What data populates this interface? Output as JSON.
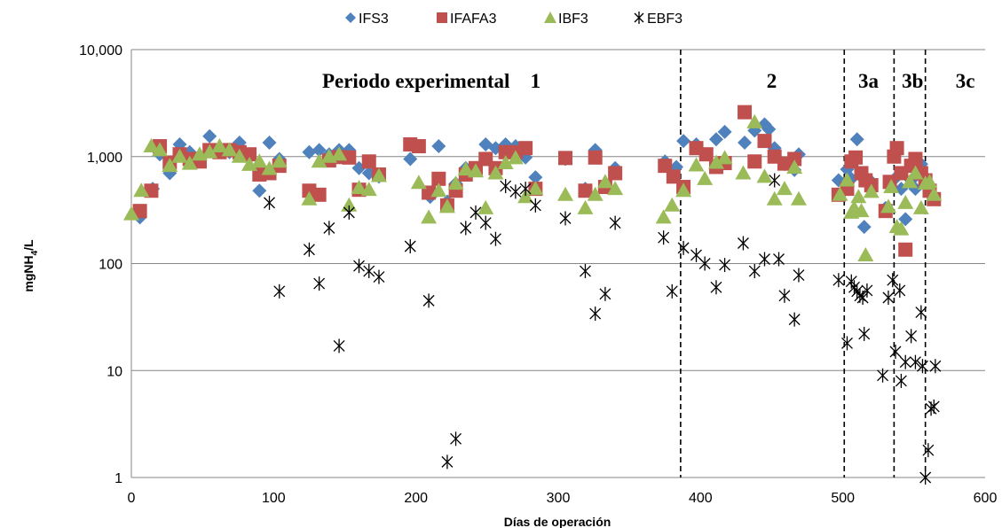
{
  "chart_data": {
    "type": "scatter",
    "title": "",
    "xlabel": "Días de operación",
    "ylabel": "mgNH4/L",
    "ylabel_main": "mgNH",
    "ylabel_sub": "4",
    "ylabel_tail": "/L",
    "y_scale": "log",
    "xlim": [
      0,
      600
    ],
    "ylim": [
      1,
      10000
    ],
    "x_ticks": [
      "0",
      "100",
      "200",
      "300",
      "400",
      "500",
      "600"
    ],
    "y_ticks": [
      "1",
      "10",
      "100",
      "1,000",
      "10,000"
    ],
    "grid": "horizontal",
    "legend_position": "top",
    "period_labels": [
      {
        "text": "Periodo experimental",
        "x": 200
      },
      {
        "text": "1",
        "x": 284
      },
      {
        "text": "2",
        "x": 450
      },
      {
        "text": "3a",
        "x": 518
      },
      {
        "text": "3b",
        "x": 549
      },
      {
        "text": "3c",
        "x": 586
      }
    ],
    "period_boundaries": [
      386,
      501,
      536,
      558
    ],
    "series": [
      {
        "name": "IFS3",
        "marker": "diamond",
        "color": "#4F81BD",
        "points": [
          [
            6,
            270
          ],
          [
            15,
            500
          ],
          [
            20,
            1050
          ],
          [
            27,
            700
          ],
          [
            34,
            1300
          ],
          [
            41,
            1100
          ],
          [
            48,
            950
          ],
          [
            55,
            1550
          ],
          [
            62,
            1200
          ],
          [
            69,
            1100
          ],
          [
            76,
            1350
          ],
          [
            83,
            1050
          ],
          [
            90,
            480
          ],
          [
            97,
            1350
          ],
          [
            104,
            950
          ],
          [
            125,
            1100
          ],
          [
            132,
            1150
          ],
          [
            139,
            1050
          ],
          [
            146,
            1150
          ],
          [
            153,
            1150
          ],
          [
            160,
            780
          ],
          [
            167,
            700
          ],
          [
            174,
            650
          ],
          [
            196,
            950
          ],
          [
            210,
            420
          ],
          [
            216,
            1250
          ],
          [
            222,
            380
          ],
          [
            228,
            560
          ],
          [
            235,
            780
          ],
          [
            242,
            750
          ],
          [
            249,
            1300
          ],
          [
            256,
            1200
          ],
          [
            263,
            1300
          ],
          [
            270,
            1250
          ],
          [
            277,
            980
          ],
          [
            284,
            640
          ],
          [
            305,
            950
          ],
          [
            319,
            500
          ],
          [
            326,
            1150
          ],
          [
            333,
            520
          ],
          [
            340,
            780
          ],
          [
            375,
            900
          ],
          [
            383,
            800
          ],
          [
            388,
            1400
          ],
          [
            397,
            1300
          ],
          [
            404,
            1050
          ],
          [
            411,
            1450
          ],
          [
            417,
            1700
          ],
          [
            431,
            1350
          ],
          [
            438,
            1750
          ],
          [
            445,
            2000
          ],
          [
            448,
            1800
          ],
          [
            452,
            1200
          ],
          [
            459,
            850
          ],
          [
            466,
            750
          ],
          [
            469,
            1050
          ],
          [
            497,
            600
          ],
          [
            503,
            760
          ],
          [
            506,
            620
          ],
          [
            510,
            1450
          ],
          [
            513,
            650
          ],
          [
            515,
            220
          ],
          [
            519,
            600
          ],
          [
            530,
            330
          ],
          [
            533,
            560
          ],
          [
            538,
            650
          ],
          [
            541,
            500
          ],
          [
            544,
            260
          ],
          [
            548,
            600
          ],
          [
            551,
            500
          ],
          [
            555,
            850
          ],
          [
            558,
            600
          ],
          [
            561,
            470
          ],
          [
            564,
            430
          ]
        ]
      },
      {
        "name": "IFAFA3",
        "marker": "square",
        "color": "#C0504D",
        "points": [
          [
            6,
            310
          ],
          [
            14,
            480
          ],
          [
            20,
            1250
          ],
          [
            27,
            880
          ],
          [
            34,
            1050
          ],
          [
            41,
            950
          ],
          [
            48,
            900
          ],
          [
            55,
            1150
          ],
          [
            62,
            1100
          ],
          [
            69,
            1150
          ],
          [
            76,
            1100
          ],
          [
            83,
            1050
          ],
          [
            90,
            680
          ],
          [
            97,
            700
          ],
          [
            104,
            820
          ],
          [
            125,
            480
          ],
          [
            132,
            440
          ],
          [
            139,
            920
          ],
          [
            146,
            990
          ],
          [
            153,
            980
          ],
          [
            160,
            490
          ],
          [
            167,
            900
          ],
          [
            174,
            680
          ],
          [
            196,
            1300
          ],
          [
            202,
            1250
          ],
          [
            209,
            460
          ],
          [
            216,
            620
          ],
          [
            222,
            350
          ],
          [
            228,
            480
          ],
          [
            235,
            680
          ],
          [
            242,
            780
          ],
          [
            249,
            950
          ],
          [
            256,
            780
          ],
          [
            263,
            1100
          ],
          [
            270,
            1100
          ],
          [
            277,
            1200
          ],
          [
            284,
            500
          ],
          [
            305,
            970
          ],
          [
            319,
            480
          ],
          [
            326,
            980
          ],
          [
            333,
            520
          ],
          [
            340,
            700
          ],
          [
            375,
            820
          ],
          [
            381,
            650
          ],
          [
            388,
            520
          ],
          [
            397,
            1200
          ],
          [
            404,
            1050
          ],
          [
            411,
            800
          ],
          [
            417,
            870
          ],
          [
            431,
            2600
          ],
          [
            438,
            900
          ],
          [
            445,
            1400
          ],
          [
            452,
            1000
          ],
          [
            459,
            860
          ],
          [
            466,
            950
          ],
          [
            497,
            440
          ],
          [
            503,
            500
          ],
          [
            506,
            900
          ],
          [
            509,
            980
          ],
          [
            513,
            700
          ],
          [
            516,
            600
          ],
          [
            520,
            540
          ],
          [
            530,
            310
          ],
          [
            533,
            580
          ],
          [
            536,
            1000
          ],
          [
            538,
            1200
          ],
          [
            541,
            700
          ],
          [
            544,
            135
          ],
          [
            548,
            820
          ],
          [
            551,
            950
          ],
          [
            555,
            700
          ],
          [
            558,
            600
          ],
          [
            561,
            480
          ],
          [
            564,
            400
          ]
        ]
      },
      {
        "name": "IBF3",
        "marker": "triangle",
        "color": "#9BBB59",
        "points": [
          [
            0,
            290
          ],
          [
            7,
            480
          ],
          [
            14,
            1250
          ],
          [
            20,
            1150
          ],
          [
            27,
            820
          ],
          [
            34,
            1000
          ],
          [
            41,
            860
          ],
          [
            48,
            1050
          ],
          [
            55,
            1100
          ],
          [
            62,
            1250
          ],
          [
            69,
            1150
          ],
          [
            76,
            1000
          ],
          [
            83,
            840
          ],
          [
            90,
            900
          ],
          [
            97,
            770
          ],
          [
            104,
            900
          ],
          [
            125,
            400
          ],
          [
            132,
            900
          ],
          [
            139,
            1000
          ],
          [
            146,
            1050
          ],
          [
            153,
            350
          ],
          [
            160,
            510
          ],
          [
            167,
            490
          ],
          [
            174,
            660
          ],
          [
            202,
            570
          ],
          [
            209,
            270
          ],
          [
            216,
            480
          ],
          [
            222,
            340
          ],
          [
            228,
            560
          ],
          [
            235,
            760
          ],
          [
            242,
            730
          ],
          [
            249,
            330
          ],
          [
            256,
            700
          ],
          [
            263,
            870
          ],
          [
            270,
            970
          ],
          [
            277,
            420
          ],
          [
            284,
            500
          ],
          [
            305,
            440
          ],
          [
            319,
            330
          ],
          [
            326,
            440
          ],
          [
            333,
            580
          ],
          [
            340,
            500
          ],
          [
            374,
            270
          ],
          [
            380,
            350
          ],
          [
            388,
            480
          ],
          [
            397,
            830
          ],
          [
            403,
            620
          ],
          [
            411,
            880
          ],
          [
            417,
            970
          ],
          [
            430,
            700
          ],
          [
            438,
            2100
          ],
          [
            445,
            650
          ],
          [
            452,
            400
          ],
          [
            459,
            500
          ],
          [
            466,
            790
          ],
          [
            469,
            400
          ],
          [
            498,
            440
          ],
          [
            503,
            600
          ],
          [
            506,
            300
          ],
          [
            508,
            330
          ],
          [
            511,
            420
          ],
          [
            513,
            310
          ],
          [
            516,
            120
          ],
          [
            520,
            470
          ],
          [
            532,
            340
          ],
          [
            534,
            520
          ],
          [
            538,
            220
          ],
          [
            541,
            210
          ],
          [
            544,
            370
          ],
          [
            547,
            580
          ],
          [
            551,
            700
          ],
          [
            555,
            330
          ],
          [
            558,
            560
          ],
          [
            561,
            580
          ],
          [
            564,
            440
          ]
        ]
      },
      {
        "name": "EBF3",
        "marker": "asterisk",
        "color": "#000000",
        "points": [
          [
            97,
            370
          ],
          [
            104,
            55
          ],
          [
            125,
            135
          ],
          [
            132,
            65
          ],
          [
            139,
            215
          ],
          [
            146,
            17
          ],
          [
            153,
            300
          ],
          [
            160,
            95
          ],
          [
            167,
            85
          ],
          [
            174,
            75
          ],
          [
            196,
            145
          ],
          [
            209,
            45
          ],
          [
            222,
            1.4
          ],
          [
            228,
            2.3
          ],
          [
            235,
            215
          ],
          [
            242,
            300
          ],
          [
            249,
            240
          ],
          [
            256,
            170
          ],
          [
            263,
            530
          ],
          [
            270,
            470
          ],
          [
            277,
            500
          ],
          [
            284,
            350
          ],
          [
            305,
            265
          ],
          [
            319,
            85
          ],
          [
            326,
            34
          ],
          [
            333,
            52
          ],
          [
            340,
            240
          ],
          [
            374,
            175
          ],
          [
            380,
            55
          ],
          [
            388,
            140
          ],
          [
            397,
            120
          ],
          [
            403,
            100
          ],
          [
            411,
            60
          ],
          [
            417,
            97
          ],
          [
            430,
            155
          ],
          [
            438,
            85
          ],
          [
            445,
            110
          ],
          [
            452,
            600
          ],
          [
            455,
            110
          ],
          [
            459,
            50
          ],
          [
            466,
            30
          ],
          [
            469,
            78
          ],
          [
            497,
            70
          ],
          [
            503,
            18
          ],
          [
            506,
            68
          ],
          [
            508,
            60
          ],
          [
            510,
            55
          ],
          [
            512,
            50
          ],
          [
            514,
            48
          ],
          [
            515,
            22
          ],
          [
            517,
            56
          ],
          [
            528,
            9
          ],
          [
            532,
            48
          ],
          [
            535,
            70
          ],
          [
            537,
            15
          ],
          [
            540,
            56
          ],
          [
            541,
            8
          ],
          [
            544,
            12
          ],
          [
            548,
            21
          ],
          [
            551,
            12
          ],
          [
            555,
            35
          ],
          [
            556,
            11
          ],
          [
            558,
            1
          ],
          [
            560,
            1.8
          ],
          [
            562,
            4.4
          ],
          [
            564,
            4.6
          ],
          [
            565,
            11
          ]
        ]
      }
    ]
  }
}
